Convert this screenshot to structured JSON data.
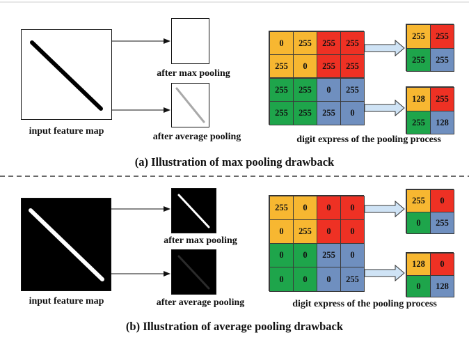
{
  "colors": {
    "yellow": "#f7b731",
    "red": "#ee3124",
    "green": "#1ea54b",
    "blue": "#6f8fbf",
    "arrow_fill": "#cfe3f5"
  },
  "panel_a": {
    "input_label": "input feature map",
    "max_label": "after max pooling",
    "avg_label": "after average pooling",
    "digit_label": "digit express of the pooling process",
    "caption": "(a) Illustration of max pooling drawback",
    "matrix": [
      [
        "0",
        "255",
        "255",
        "255"
      ],
      [
        "255",
        "0",
        "255",
        "255"
      ],
      [
        "255",
        "255",
        "0",
        "255"
      ],
      [
        "255",
        "255",
        "255",
        "0"
      ]
    ],
    "max_result": [
      [
        "255",
        "255"
      ],
      [
        "255",
        "255"
      ]
    ],
    "avg_result": [
      [
        "128",
        "255"
      ],
      [
        "255",
        "128"
      ]
    ]
  },
  "panel_b": {
    "input_label": "input feature map",
    "max_label": "after max pooling",
    "avg_label": "after average pooling",
    "digit_label": "digit express of the pooling process",
    "caption": "(b) Illustration of average pooling drawback",
    "matrix": [
      [
        "255",
        "0",
        "0",
        "0"
      ],
      [
        "0",
        "255",
        "0",
        "0"
      ],
      [
        "0",
        "0",
        "255",
        "0"
      ],
      [
        "0",
        "0",
        "0",
        "255"
      ]
    ],
    "max_result": [
      [
        "255",
        "0"
      ],
      [
        "0",
        "255"
      ]
    ],
    "avg_result": [
      [
        "128",
        "0"
      ],
      [
        "0",
        "128"
      ]
    ]
  }
}
